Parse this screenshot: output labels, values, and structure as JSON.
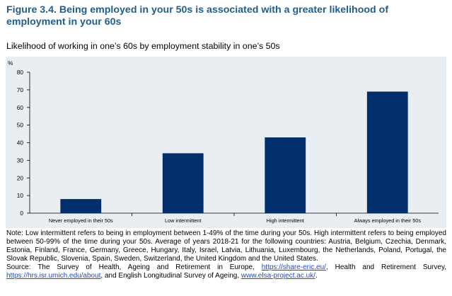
{
  "figure": {
    "title": "Figure 3.4. Being employed in your 50s is associated with a greater likelihood of employment in your 60s",
    "subtitle": "Likelihood of working in one’s 60s by employment stability in one’s 50s"
  },
  "chart_data": {
    "type": "bar",
    "categories": [
      "Never employed in their 50s",
      "Low intermittent",
      "High intermittent",
      "Always employed in their 50s"
    ],
    "values": [
      8,
      34,
      43,
      69
    ],
    "ylabel": "%",
    "ylim": [
      0,
      80
    ],
    "yticks": [
      0,
      10,
      20,
      30,
      40,
      50,
      60,
      70,
      80
    ],
    "grid": false,
    "bar_color": "#002f6c",
    "background_color": "#e9eef2"
  },
  "notes": {
    "note": "Note: Low intermittent refers to being in employment between 1-49% of the time during your 50s. High intermittent refers to being employed between 50-99% of the time during your 50s. Average of years 2018-21 for the following countries: Austria, Belgium, Czechia, Denmark, Estonia, Finland, France, Germany, Greece, Hungary, Italy, Israel, Latvia, Lithuania, Luxembourg, the Netherlands, Poland, Portugal, the Slovak Republic, Slovenia, Spain, Sweden, Switzerland, the United Kingdom and the United States.",
    "source_prefix": "Source: The Survey of Health, Ageing and Retirement in Europe, ",
    "link1": "https://share-eric.eu/",
    "source_mid1": ", Health and Retirement Survey, ",
    "link2": "https://hrs.isr.umich.edu/about",
    "source_mid2": ", and English Longitudinal Survey of Ageing, ",
    "link3": "www.elsa-project.ac.uk/",
    "source_end": "."
  }
}
